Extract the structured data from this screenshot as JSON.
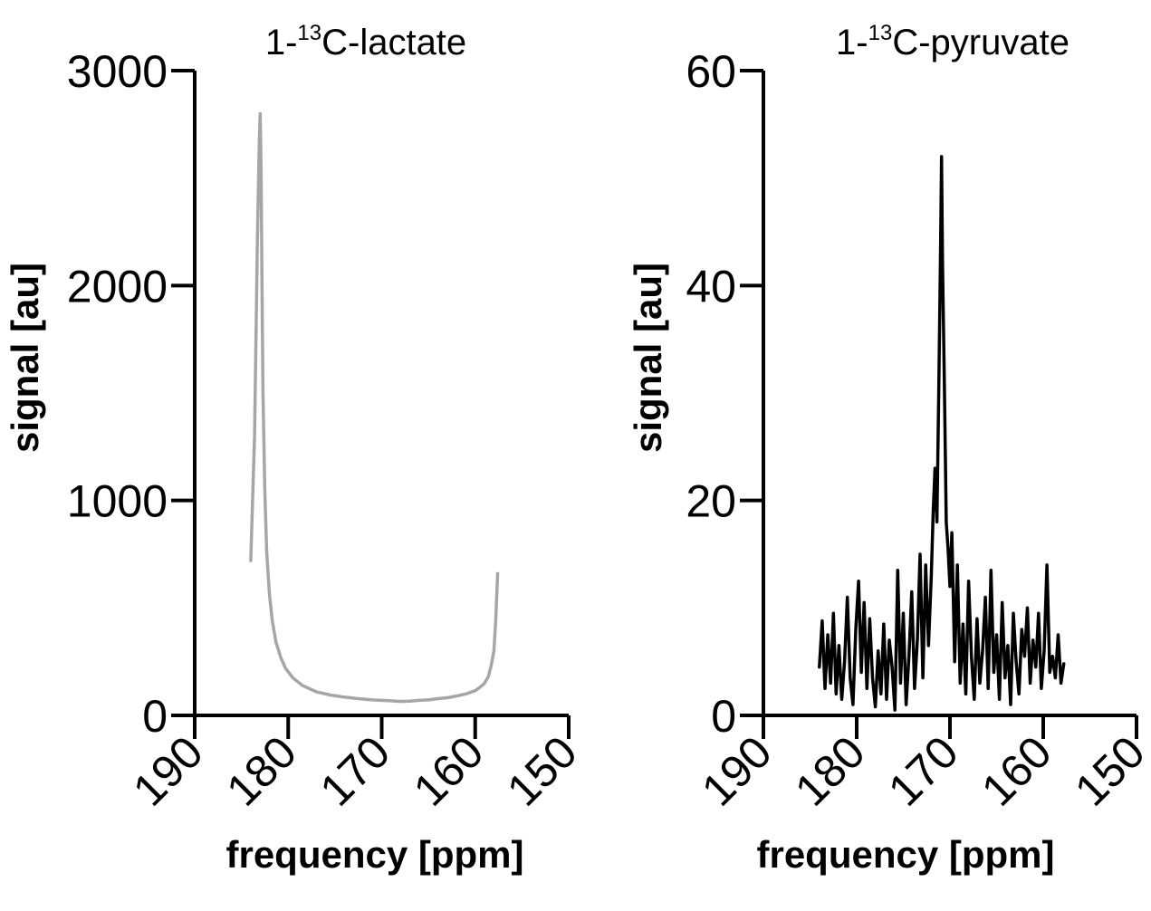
{
  "chart_data": [
    {
      "type": "line",
      "title": {
        "prefix": "1-",
        "sup": "13",
        "suffix": "C-lactate"
      },
      "xlabel": "frequency [ppm]",
      "ylabel": "signal [au]",
      "xlim": [
        190,
        150
      ],
      "x_reversed": true,
      "ylim": [
        0,
        3000
      ],
      "xticks": [
        190,
        180,
        170,
        160,
        150
      ],
      "yticks": [
        0,
        1000,
        2000,
        3000
      ],
      "grid": false,
      "legend": "none",
      "series": [
        {
          "color": "#a6a6a6",
          "x": [
            184.0,
            183.6,
            183.3,
            183.1,
            183.0,
            182.9,
            182.8,
            182.7,
            182.5,
            182.3,
            182.0,
            181.7,
            181.3,
            180.8,
            180.3,
            179.5,
            178.5,
            177.0,
            175.5,
            174.0,
            172.5,
            171.0,
            170.0,
            169.0,
            168.0,
            167.0,
            166.0,
            165.0,
            164.0,
            163.0,
            162.0,
            161.0,
            160.0,
            159.5,
            159.0,
            158.6,
            158.3,
            158.0,
            157.8,
            157.6
          ],
          "y": [
            720,
            1300,
            2200,
            2650,
            2800,
            2550,
            2000,
            1500,
            1050,
            760,
            560,
            440,
            340,
            270,
            220,
            175,
            140,
            110,
            95,
            85,
            78,
            72,
            70,
            68,
            65,
            66,
            70,
            72,
            78,
            82,
            90,
            100,
            115,
            130,
            150,
            180,
            230,
            300,
            450,
            660
          ]
        }
      ]
    },
    {
      "type": "line",
      "title": {
        "prefix": "1-",
        "sup": "13",
        "suffix": "C-pyruvate"
      },
      "xlabel": "frequency [ppm]",
      "ylabel": "signal [au]",
      "xlim": [
        190,
        150
      ],
      "x_reversed": true,
      "ylim": [
        0,
        60
      ],
      "xticks": [
        190,
        180,
        170,
        160,
        150
      ],
      "yticks": [
        0,
        20,
        40,
        60
      ],
      "grid": false,
      "legend": "none",
      "series": [
        {
          "color": "#000000",
          "x": [
            184.0,
            183.7,
            183.4,
            183.1,
            182.8,
            182.5,
            182.2,
            181.9,
            181.6,
            181.3,
            181.0,
            180.7,
            180.4,
            180.1,
            179.8,
            179.5,
            179.2,
            178.9,
            178.6,
            178.3,
            178.0,
            177.7,
            177.4,
            177.1,
            176.8,
            176.5,
            176.2,
            175.9,
            175.6,
            175.3,
            175.0,
            174.7,
            174.4,
            174.1,
            173.8,
            173.5,
            173.2,
            172.9,
            172.6,
            172.3,
            172.0,
            171.8,
            171.6,
            171.4,
            171.2,
            171.0,
            170.9,
            170.8,
            170.6,
            170.4,
            170.2,
            170.0,
            169.8,
            169.5,
            169.2,
            168.9,
            168.6,
            168.3,
            168.0,
            167.7,
            167.4,
            167.1,
            166.8,
            166.5,
            166.2,
            165.9,
            165.6,
            165.3,
            165.0,
            164.7,
            164.4,
            164.1,
            163.8,
            163.5,
            163.2,
            162.9,
            162.6,
            162.3,
            162.0,
            161.7,
            161.4,
            161.1,
            160.8,
            160.5,
            160.2,
            159.9,
            159.6,
            159.3,
            159.0,
            158.7,
            158.4,
            158.1,
            157.8
          ],
          "y": [
            4.5,
            8.8,
            2.5,
            7.5,
            3.0,
            9.5,
            2.0,
            6.5,
            1.5,
            5.0,
            11.0,
            3.5,
            1.0,
            8.0,
            12.5,
            4.0,
            10.5,
            2.5,
            9.0,
            3.5,
            0.8,
            6.0,
            2.0,
            8.5,
            1.5,
            7.0,
            4.5,
            0.5,
            13.5,
            3.0,
            9.5,
            1.0,
            5.5,
            11.5,
            2.5,
            7.0,
            15.0,
            3.5,
            14.0,
            6.5,
            13.0,
            19.0,
            23.0,
            18.0,
            30.0,
            44.0,
            52.0,
            42.0,
            31.0,
            18.0,
            15.5,
            12.0,
            17.0,
            5.0,
            14.0,
            3.0,
            8.5,
            2.0,
            12.5,
            5.5,
            1.5,
            9.0,
            3.0,
            6.0,
            11.0,
            2.5,
            13.5,
            4.0,
            7.5,
            1.5,
            10.5,
            3.5,
            6.5,
            1.0,
            9.5,
            5.0,
            2.0,
            8.0,
            5.5,
            10.0,
            3.0,
            7.0,
            4.5,
            9.5,
            2.5,
            6.0,
            14.0,
            4.0,
            5.5,
            3.5,
            7.5,
            3.0,
            4.8
          ]
        }
      ]
    }
  ]
}
